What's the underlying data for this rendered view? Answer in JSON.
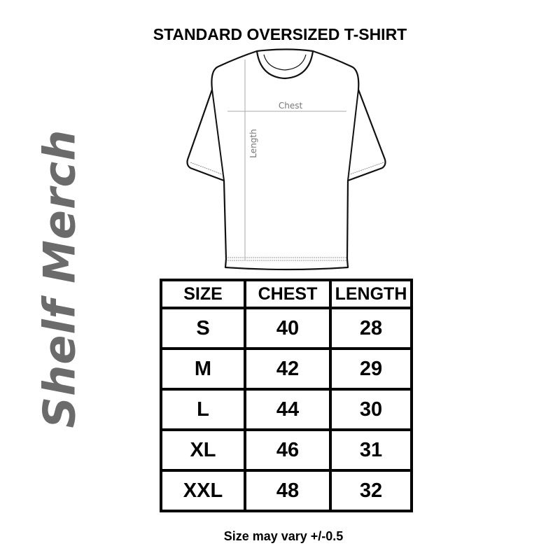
{
  "title": "STANDARD OVERSIZED T-SHIRT",
  "logo_text": "Shelf Merch",
  "diagram": {
    "chest_label": "Chest",
    "length_label": "Length"
  },
  "table": {
    "headers": [
      "SIZE",
      "CHEST",
      "LENGTH"
    ],
    "rows": [
      [
        "S",
        "40",
        "28"
      ],
      [
        "M",
        "42",
        "29"
      ],
      [
        "L",
        "44",
        "30"
      ],
      [
        "XL",
        "46",
        "31"
      ],
      [
        "XXL",
        "48",
        "32"
      ]
    ]
  },
  "note": "Size may vary +/-0.5"
}
